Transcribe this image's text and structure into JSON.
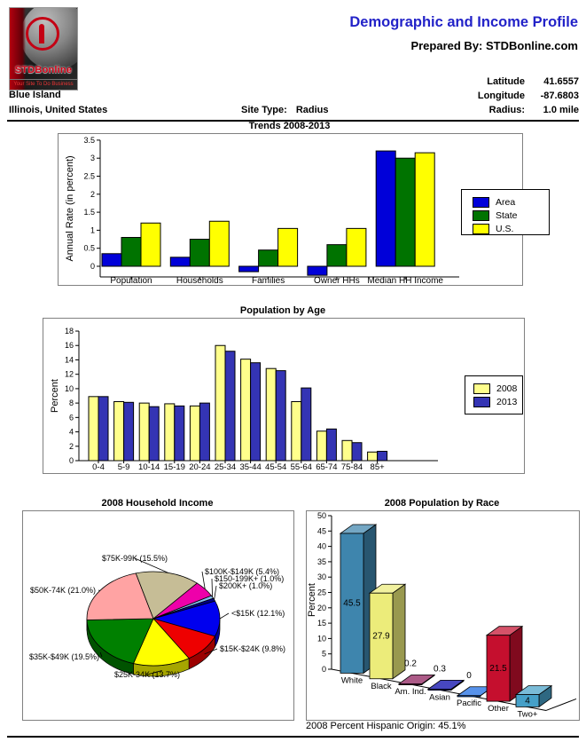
{
  "header": {
    "title": "Demographic and Income Profile",
    "prepared_by": "Prepared By: STDBonline.com",
    "logo": {
      "brand": "STDBonline",
      "tagline": "Your Site To Do Business"
    },
    "location_line1": "Blue Island",
    "location_line2": "Illinois, United States",
    "site_type_label": "Site Type:",
    "site_type_value": "Radius",
    "coords": [
      {
        "label": "Latitude",
        "value": "41.6557"
      },
      {
        "label": "Longitude",
        "value": "-87.6803"
      },
      {
        "label": "Radius:",
        "value": "1.0 mile"
      }
    ]
  },
  "footer": {
    "hispanic_origin": "2008 Percent Hispanic Origin: 45.1%"
  },
  "accent_color": "#2222C8",
  "chart_data": [
    {
      "type": "bar",
      "title": "Trends 2008-2013",
      "ylabel": "Annual Rate (in percent)",
      "ylim": [
        -0.3,
        3.5
      ],
      "yticks": [
        0,
        0.5,
        1,
        1.5,
        2,
        2.5,
        3,
        3.5
      ],
      "grid": false,
      "legend_position": "right",
      "categories": [
        "Population",
        "Households",
        "Families",
        "Owner HHs",
        "Median HH Income"
      ],
      "series": [
        {
          "name": "Area",
          "color": "#0000D9",
          "values": [
            0.35,
            0.25,
            -0.15,
            -0.25,
            3.2
          ]
        },
        {
          "name": "State",
          "color": "#007300",
          "values": [
            0.8,
            0.75,
            0.45,
            0.6,
            3.0
          ]
        },
        {
          "name": "U.S.",
          "color": "#FFFF00",
          "values": [
            1.2,
            1.25,
            1.05,
            1.05,
            3.15
          ]
        }
      ]
    },
    {
      "type": "bar",
      "title": "Population by Age",
      "ylabel": "Percent",
      "ylim": [
        0,
        18
      ],
      "yticks": [
        0,
        2,
        4,
        6,
        8,
        10,
        12,
        14,
        16,
        18
      ],
      "grid": false,
      "legend_position": "right",
      "categories": [
        "0-4",
        "5-9",
        "10-14",
        "15-19",
        "20-24",
        "25-34",
        "35-44",
        "45-54",
        "55-64",
        "65-74",
        "75-84",
        "85+"
      ],
      "series": [
        {
          "name": "2008",
          "color": "#FFFF8C",
          "values": [
            8.9,
            8.2,
            8.0,
            7.9,
            7.6,
            16.0,
            14.1,
            12.8,
            8.2,
            4.1,
            2.8,
            1.2
          ]
        },
        {
          "name": "2013",
          "color": "#3434B4",
          "values": [
            8.9,
            8.1,
            7.5,
            7.6,
            8.0,
            15.2,
            13.6,
            12.5,
            10.1,
            4.4,
            2.5,
            1.3
          ]
        }
      ]
    },
    {
      "type": "pie",
      "title": "2008 Household Income",
      "slices": [
        {
          "label": "<$15K",
          "pct": 12.1,
          "color": "#0000EE"
        },
        {
          "label": "$15K-$24K",
          "pct": 9.8,
          "color": "#EE0000"
        },
        {
          "label": "$25K-34K",
          "pct": 13.7,
          "color": "#FFFF00"
        },
        {
          "label": "$35K-$49K",
          "pct": 19.5,
          "color": "#008000"
        },
        {
          "label": "$50K-74K",
          "pct": 21.0,
          "color": "#FFA3A3"
        },
        {
          "label": "$75K-99K",
          "pct": 15.5,
          "color": "#C6BD96"
        },
        {
          "label": "$100K-$149K",
          "pct": 5.4,
          "color": "#EE00AA"
        },
        {
          "label": "$150-199K+",
          "pct": 1.0,
          "color": "#88BBEE"
        },
        {
          "label": "$200K+",
          "pct": 1.0,
          "color": "#000088"
        }
      ]
    },
    {
      "type": "bar3d",
      "title": "2008 Population by Race",
      "ylabel": "Percent",
      "ylim": [
        0,
        50
      ],
      "yticks": [
        0,
        5,
        10,
        15,
        20,
        25,
        30,
        35,
        40,
        45,
        50
      ],
      "categories": [
        "White",
        "Black",
        "Am. Ind.",
        "Asian",
        "Pacific",
        "Other",
        "Two+"
      ],
      "values": [
        45.5,
        27.9,
        0.2,
        0.3,
        0,
        21.5,
        4
      ],
      "value_labels": [
        "45.5",
        "27.9",
        "0.2",
        "0.3",
        "0",
        "21.5",
        "4"
      ],
      "colors": [
        "#3E85AD",
        "#ECEC7A",
        "#8C1A59",
        "#0000A8",
        "#1668E3",
        "#C50F2E",
        "#46A0C8"
      ]
    }
  ]
}
